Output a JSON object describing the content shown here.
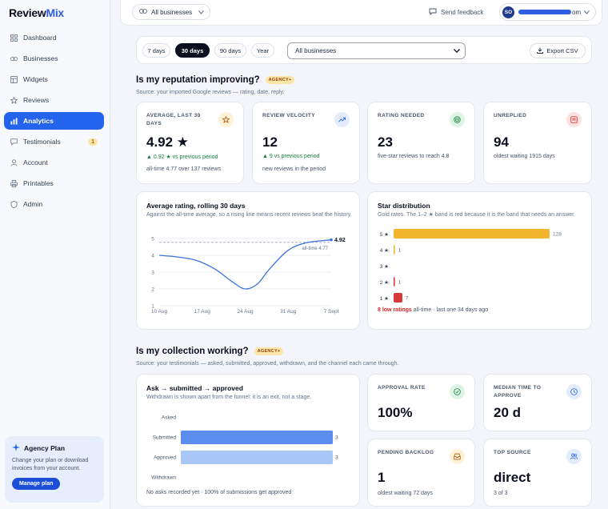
{
  "brand": {
    "name_a": "Review",
    "name_b": "Mix"
  },
  "sidebar": {
    "items": [
      {
        "label": "Dashboard",
        "icon": "grid-icon",
        "active": false
      },
      {
        "label": "Businesses",
        "icon": "link-icon",
        "active": false
      },
      {
        "label": "Widgets",
        "icon": "widget-icon",
        "active": false
      },
      {
        "label": "Reviews",
        "icon": "star-icon",
        "active": false
      },
      {
        "label": "Analytics",
        "icon": "bar-chart-icon",
        "active": true
      },
      {
        "label": "Testimonials",
        "icon": "message-icon",
        "active": false,
        "badge": "1"
      },
      {
        "label": "Account",
        "icon": "user-icon",
        "active": false
      },
      {
        "label": "Printables",
        "icon": "printer-icon",
        "active": false
      },
      {
        "label": "Admin",
        "icon": "shield-icon",
        "active": false
      }
    ],
    "plan": {
      "title": "Agency Plan",
      "description": "Change your plan or download invoices from your account.",
      "button": "Manage plan"
    }
  },
  "topbar": {
    "business_select": "All businesses",
    "feedback": "Send feedback",
    "avatar_initials": "SO",
    "email_suffix": "om"
  },
  "filters": {
    "ranges": [
      "7 days",
      "30 days",
      "90 days",
      "Year"
    ],
    "active_range": "30 days",
    "business_select": "All businesses",
    "export": "Export CSV"
  },
  "reputation": {
    "title": "Is my reputation improving?",
    "tag": "AGENCY+",
    "subtitle": "Source: your imported Google reviews — rating, date, reply.",
    "stats": [
      {
        "label": "AVERAGE, LAST 30 DAYS",
        "value": "4.92 ★",
        "delta": "▲ 0.92 ★ vs previous period",
        "note": "all-time 4.77 over 137 reviews",
        "icon": "star-outline-icon",
        "icon_bg": "#fdf1d6",
        "icon_color": "#b45309"
      },
      {
        "label": "REVIEW VELOCITY",
        "value": "12",
        "delta": "▲ 9 vs previous period",
        "note": "new reviews in the period",
        "icon": "trend-up-icon",
        "icon_bg": "#e3ecfc",
        "icon_color": "#2463eb"
      },
      {
        "label": "RATING NEEDED",
        "value": "23",
        "delta": "",
        "note": "five-star reviews to reach 4.8",
        "icon": "target-icon",
        "icon_bg": "#dcf5e4",
        "icon_color": "#15803d"
      },
      {
        "label": "UNREPLIED",
        "value": "94",
        "delta": "",
        "note": "oldest waiting 1915 days",
        "icon": "inbox-icon",
        "icon_bg": "#fde2e2",
        "icon_color": "#dc2626"
      }
    ]
  },
  "rating_chart": {
    "title": "Average rating, rolling 30 days",
    "subtitle": "Against the all-time average, so a rising line means recent reviews beat the history.",
    "end_label": "4.92",
    "baseline_label": "all-time 4.77"
  },
  "star_chart": {
    "title": "Star distribution",
    "subtitle": "Gold rates. The 1–2 ★ band is red because it is the band that needs an answer.",
    "footer_alert": "8 low ratings",
    "footer_rest": " all-time · last one 34 days ago"
  },
  "collection": {
    "title": "Is my collection working?",
    "tag": "AGENCY+",
    "subtitle": "Source: your testimonials — asked, submitted, approved, withdrawn, and the channel each came through."
  },
  "funnel": {
    "title": "Ask → submitted → approved",
    "subtitle": "Withdrawn is shown apart from the funnel: it is an exit, not a stage.",
    "footer": "No asks recorded yet · 100% of submissions get approved"
  },
  "collection_stats": [
    {
      "label": "APPROVAL RATE",
      "value": "100%",
      "note": "",
      "icon": "check-circle-icon",
      "icon_bg": "#dcf5e4",
      "icon_color": "#15803d"
    },
    {
      "label": "MEDIAN TIME TO APPROVE",
      "value": "20 d",
      "note": "",
      "icon": "clock-icon",
      "icon_bg": "#e3ecfc",
      "icon_color": "#2463eb"
    },
    {
      "label": "PENDING BACKLOG",
      "value": "1",
      "note": "oldest waiting 72 days",
      "icon": "tray-icon",
      "icon_bg": "#fdf1d6",
      "icon_color": "#b45309"
    },
    {
      "label": "TOP SOURCE",
      "value": "direct",
      "note": "3 of 3",
      "icon": "users-icon",
      "icon_bg": "#e3ecfc",
      "icon_color": "#2463eb"
    }
  ],
  "chart_data": [
    {
      "type": "line",
      "title": "Average rating, rolling 30 days",
      "x_ticks": [
        "10 Aug",
        "17 Aug",
        "24 Aug",
        "31 Aug",
        "7 Sept"
      ],
      "x": [
        0,
        3,
        6,
        9,
        12,
        14,
        16,
        18,
        21,
        24,
        28
      ],
      "x_dates": [
        "10 Aug",
        "13 Aug",
        "16 Aug",
        "19 Aug",
        "22 Aug",
        "24 Aug",
        "26 Aug",
        "28 Aug",
        "31 Aug",
        "3 Sept",
        "7 Sept"
      ],
      "y": [
        4.0,
        3.9,
        3.7,
        3.2,
        2.4,
        2.0,
        2.3,
        3.2,
        4.3,
        4.75,
        4.92
      ],
      "ylim": [
        1,
        5
      ],
      "y_ticks": [
        1,
        2,
        3,
        4,
        5
      ],
      "baseline": 4.77,
      "series_color": "#3b73d9"
    },
    {
      "type": "bar",
      "orientation": "horizontal",
      "title": "Star distribution",
      "categories": [
        "5 ★",
        "4 ★",
        "3 ★",
        "2 ★",
        "1 ★"
      ],
      "values": [
        128,
        1,
        0,
        1,
        7
      ],
      "colors": [
        "#f2b52e",
        "#f2b52e",
        "#f2b52e",
        "#d93838",
        "#d93838"
      ]
    },
    {
      "type": "bar",
      "orientation": "horizontal",
      "title": "Ask → submitted → approved",
      "categories": [
        "Asked",
        "Submitted",
        "Approved",
        "Withdrawn"
      ],
      "values": [
        0,
        3,
        3,
        0
      ],
      "colors": [
        "#5b8def",
        "#5b8def",
        "#a9c7f7",
        "#cbd5e1"
      ]
    }
  ]
}
